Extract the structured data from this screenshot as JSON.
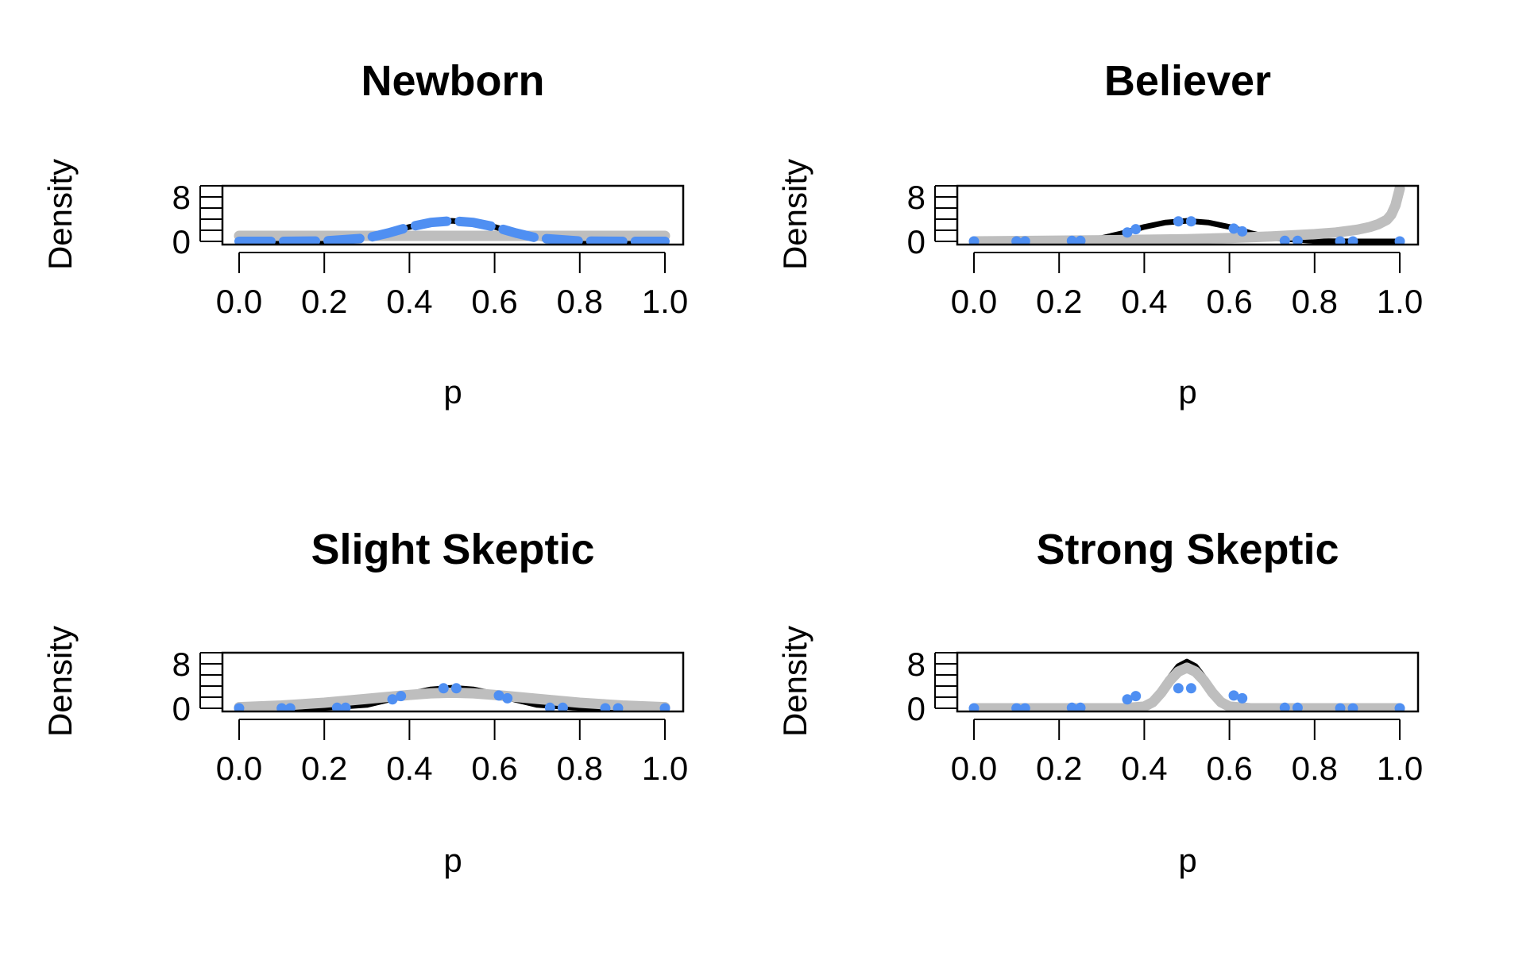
{
  "colors": {
    "background": "#ffffff",
    "likelihood": "#000000",
    "posterior": "#bebebe",
    "prior": "#4f8ff2",
    "frame": "#000000"
  },
  "chart_data": [
    {
      "type": "line",
      "title": "Newborn",
      "xlabel": "p",
      "ylabel": "Density",
      "xlim": [
        0,
        1
      ],
      "ylim": [
        0,
        10
      ],
      "x_ticks": [
        "0.0",
        "0.2",
        "0.4",
        "0.6",
        "0.8",
        "1.0"
      ],
      "y_ticks": [
        "0",
        "8"
      ],
      "prior_style": "dashed",
      "series": [
        {
          "role": "likelihood",
          "p": [
            0.0,
            0.1,
            0.2,
            0.3,
            0.35,
            0.4,
            0.45,
            0.5,
            0.55,
            0.6,
            0.65,
            0.7,
            0.8,
            0.9,
            1.0
          ],
          "density": [
            0,
            0,
            0.05,
            0.6,
            1.5,
            2.6,
            3.4,
            3.7,
            3.4,
            2.6,
            1.5,
            0.6,
            0.05,
            0,
            0
          ]
        },
        {
          "role": "posterior",
          "p": [
            0.0,
            0.5,
            1.0
          ],
          "density": [
            1,
            1,
            1
          ]
        },
        {
          "role": "prior",
          "p": [
            0.0,
            0.1,
            0.2,
            0.3,
            0.35,
            0.4,
            0.45,
            0.5,
            0.55,
            0.6,
            0.65,
            0.7,
            0.8,
            0.9,
            1.0
          ],
          "density": [
            0,
            0,
            0.05,
            0.6,
            1.5,
            2.6,
            3.4,
            3.7,
            3.4,
            2.6,
            1.5,
            0.6,
            0.05,
            0,
            0
          ]
        }
      ]
    },
    {
      "type": "line",
      "title": "Believer",
      "xlabel": "p",
      "ylabel": "Density",
      "xlim": [
        0,
        1
      ],
      "ylim": [
        0,
        10
      ],
      "x_ticks": [
        "0.0",
        "0.2",
        "0.4",
        "0.6",
        "0.8",
        "1.0"
      ],
      "y_ticks": [
        "0",
        "8"
      ],
      "prior_style": "points",
      "series": [
        {
          "role": "likelihood",
          "p": [
            0.0,
            0.1,
            0.2,
            0.3,
            0.35,
            0.4,
            0.45,
            0.5,
            0.55,
            0.6,
            0.65,
            0.7,
            0.8,
            0.9,
            1.0
          ],
          "density": [
            0,
            0,
            0.05,
            0.6,
            1.5,
            2.6,
            3.4,
            3.7,
            3.4,
            2.6,
            1.5,
            0.6,
            0.05,
            0,
            0
          ]
        },
        {
          "role": "posterior",
          "p": [
            0.0,
            0.3,
            0.5,
            0.6,
            0.7,
            0.8,
            0.85,
            0.9,
            0.93,
            0.95,
            0.97,
            0.98,
            0.99,
            1.0
          ],
          "density": [
            0,
            0.2,
            0.4,
            0.6,
            0.9,
            1.3,
            1.6,
            2.1,
            2.6,
            3.1,
            3.9,
            4.8,
            6.5,
            9.5
          ]
        },
        {
          "role": "prior",
          "p": [
            0.0,
            0.1,
            0.12,
            0.23,
            0.25,
            0.36,
            0.38,
            0.48,
            0.51,
            0.61,
            0.63,
            0.73,
            0.76,
            0.86,
            0.89,
            1.0
          ],
          "density": [
            0,
            0,
            0,
            0.1,
            0.1,
            1.6,
            2.2,
            3.6,
            3.6,
            2.3,
            1.8,
            0.1,
            0.1,
            0,
            0,
            0
          ]
        }
      ]
    },
    {
      "type": "line",
      "title": "Slight Skeptic",
      "xlabel": "p",
      "ylabel": "Density",
      "xlim": [
        0,
        1
      ],
      "ylim": [
        0,
        10
      ],
      "x_ticks": [
        "0.0",
        "0.2",
        "0.4",
        "0.6",
        "0.8",
        "1.0"
      ],
      "y_ticks": [
        "0",
        "8"
      ],
      "prior_style": "points",
      "series": [
        {
          "role": "likelihood",
          "p": [
            0.0,
            0.1,
            0.2,
            0.3,
            0.35,
            0.4,
            0.45,
            0.5,
            0.55,
            0.6,
            0.65,
            0.7,
            0.8,
            0.9,
            1.0
          ],
          "density": [
            0,
            0,
            0.05,
            0.6,
            1.5,
            2.6,
            3.4,
            3.7,
            3.4,
            2.6,
            1.5,
            0.6,
            0.05,
            0,
            0
          ]
        },
        {
          "role": "posterior",
          "p": [
            0.0,
            0.1,
            0.2,
            0.3,
            0.4,
            0.45,
            0.5,
            0.55,
            0.6,
            0.7,
            0.8,
            0.9,
            1.0
          ],
          "density": [
            0.2,
            0.5,
            1.0,
            1.7,
            2.4,
            2.7,
            2.8,
            2.7,
            2.4,
            1.7,
            1.0,
            0.5,
            0.2
          ]
        },
        {
          "role": "prior",
          "p": [
            0.0,
            0.1,
            0.12,
            0.23,
            0.25,
            0.36,
            0.38,
            0.48,
            0.51,
            0.61,
            0.63,
            0.73,
            0.76,
            0.86,
            0.89,
            1.0
          ],
          "density": [
            0,
            0,
            0,
            0.1,
            0.1,
            1.6,
            2.2,
            3.6,
            3.6,
            2.3,
            1.8,
            0.1,
            0.1,
            0,
            0,
            0
          ]
        }
      ]
    },
    {
      "type": "line",
      "title": "Strong Skeptic",
      "xlabel": "p",
      "ylabel": "Density",
      "xlim": [
        0,
        1
      ],
      "ylim": [
        0,
        10
      ],
      "x_ticks": [
        "0.0",
        "0.2",
        "0.4",
        "0.6",
        "0.8",
        "1.0"
      ],
      "y_ticks": [
        "0",
        "8"
      ],
      "prior_style": "points",
      "series": [
        {
          "role": "likelihood",
          "p": [
            0.0,
            0.35,
            0.4,
            0.42,
            0.44,
            0.46,
            0.48,
            0.5,
            0.52,
            0.54,
            0.56,
            0.58,
            0.6,
            0.65,
            1.0
          ],
          "density": [
            0,
            0,
            0.3,
            1.2,
            3.0,
            5.6,
            7.6,
            8.4,
            7.6,
            5.6,
            3.0,
            1.2,
            0.3,
            0,
            0
          ]
        },
        {
          "role": "posterior",
          "p": [
            0.0,
            0.35,
            0.4,
            0.42,
            0.44,
            0.46,
            0.48,
            0.5,
            0.52,
            0.54,
            0.56,
            0.58,
            0.6,
            0.65,
            1.0
          ],
          "density": [
            0,
            0,
            0.3,
            1.1,
            2.8,
            5.0,
            6.6,
            7.3,
            6.6,
            5.0,
            2.8,
            1.1,
            0.3,
            0,
            0
          ]
        },
        {
          "role": "prior",
          "p": [
            0.0,
            0.1,
            0.12,
            0.23,
            0.25,
            0.36,
            0.38,
            0.48,
            0.51,
            0.61,
            0.63,
            0.73,
            0.76,
            0.86,
            0.89,
            1.0
          ],
          "density": [
            0,
            0,
            0,
            0.1,
            0.1,
            1.6,
            2.2,
            3.6,
            3.6,
            2.3,
            1.8,
            0.1,
            0.1,
            0,
            0,
            0
          ]
        }
      ]
    }
  ]
}
